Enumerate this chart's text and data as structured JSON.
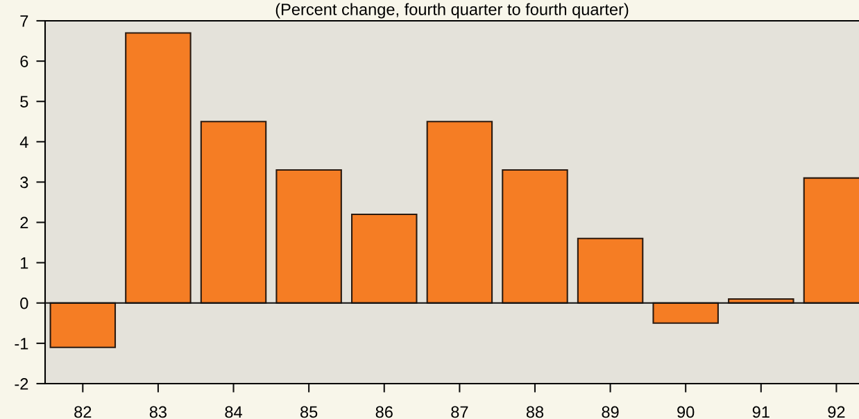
{
  "chart_data": {
    "type": "bar",
    "title": "(Percent change, fourth quarter to fourth quarter)",
    "categories": [
      "82",
      "83",
      "84",
      "85",
      "86",
      "87",
      "88",
      "89",
      "90",
      "91",
      "92"
    ],
    "values": [
      -1.1,
      6.7,
      4.5,
      3.3,
      2.2,
      4.5,
      3.3,
      1.6,
      -0.5,
      0.1,
      3.1
    ],
    "color": "#f57d24",
    "ylim": [
      -2,
      7
    ],
    "yticks": [
      -2,
      -1,
      0,
      1,
      2,
      3,
      4,
      5,
      6,
      7
    ],
    "ref_lines": [
      {
        "axis": "y",
        "value": 0,
        "color": "#111111"
      }
    ]
  }
}
